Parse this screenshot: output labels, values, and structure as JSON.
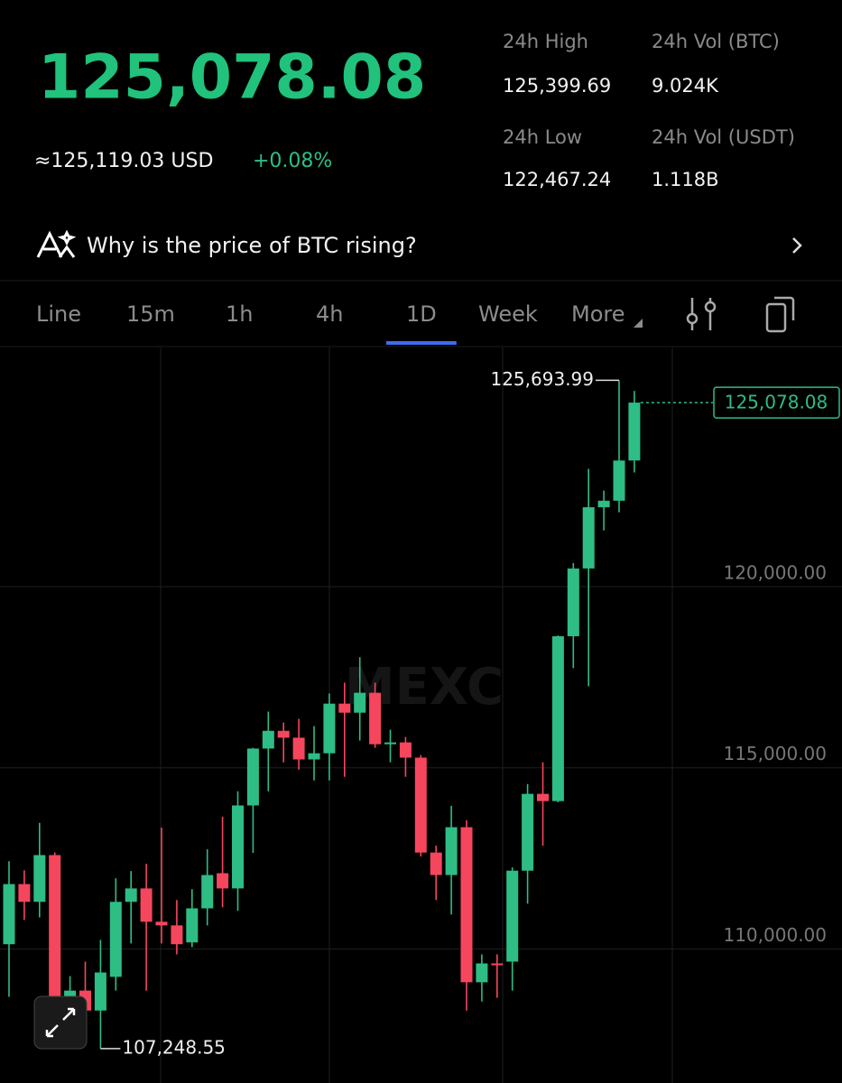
{
  "header": {
    "price": "125,078.08",
    "usd_price": "≈125,119.03 USD",
    "change": "+0.08%",
    "stats": [
      {
        "label": "24h High",
        "value": "125,399.69"
      },
      {
        "label": "24h Vol (BTC)",
        "value": "9.024K"
      },
      {
        "label": "24h Low",
        "value": "122,467.24"
      },
      {
        "label": "24h Vol  (USDT)",
        "value": "1.118B"
      }
    ]
  },
  "banner": {
    "text": "Why is the price of BTC rising?"
  },
  "tabs": {
    "items": [
      "Line",
      "15m",
      "1h",
      "4h",
      "1D",
      "Week",
      "More"
    ],
    "active": "1D"
  },
  "chart_data": {
    "type": "candlestick",
    "watermark": "MEXC",
    "up_color": "#2ebd85",
    "down_color": "#f6465d",
    "open": [
      110130,
      111790,
      111300,
      112590,
      108550,
      108850,
      108300,
      109230,
      111300,
      111670,
      110750,
      110650,
      110180,
      111120,
      112090,
      111670,
      113960,
      115530,
      116020,
      115830,
      115230,
      115400,
      116770,
      116520,
      117070,
      115650,
      115700,
      115280,
      112660,
      112040,
      113360,
      109080,
      109600,
      109650,
      112160,
      114280,
      114080,
      118630,
      120500,
      122190,
      122370,
      123480
    ],
    "high": [
      112420,
      112170,
      113480,
      112660,
      109250,
      109650,
      110250,
      111950,
      112150,
      112350,
      113350,
      111350,
      111650,
      112750,
      113650,
      114350,
      115550,
      116550,
      116250,
      116350,
      116150,
      117050,
      117350,
      118050,
      117350,
      116050,
      115850,
      115350,
      112850,
      113950,
      113550,
      109850,
      109850,
      112250,
      114550,
      115150,
      118650,
      120650,
      123250,
      122650,
      125693.99,
      125400
    ],
    "low": [
      108680,
      110800,
      110870,
      108060,
      107650,
      108250,
      107248.55,
      108850,
      110150,
      108850,
      110150,
      109850,
      110050,
      110650,
      111150,
      111050,
      112650,
      114350,
      115150,
      114950,
      114650,
      114650,
      114750,
      115750,
      115550,
      115150,
      114750,
      112550,
      111350,
      110950,
      108300,
      108550,
      108650,
      108850,
      111250,
      112850,
      114050,
      117750,
      117250,
      121550,
      122050,
      123150
    ],
    "close": [
      111790,
      111300,
      112590,
      108680,
      108850,
      108300,
      109350,
      111300,
      111670,
      110750,
      110650,
      110130,
      111120,
      112040,
      111670,
      113960,
      115530,
      116020,
      115830,
      115230,
      115400,
      116770,
      116520,
      117070,
      115650,
      115700,
      115280,
      112660,
      112040,
      113360,
      109080,
      109600,
      109550,
      112160,
      114280,
      114080,
      118630,
      120500,
      122190,
      122370,
      123480,
      125078.08
    ],
    "ylim": [
      106300,
      126600
    ],
    "yticks": [
      {
        "value": 110000,
        "label": "110,000.00"
      },
      {
        "value": 115000,
        "label": "115,000.00"
      },
      {
        "value": 120000,
        "label": "120,000.00"
      }
    ],
    "grid": true,
    "high_label": {
      "value": 125693.99,
      "label": "125,693.99"
    },
    "low_label": {
      "value": 107248.55,
      "label": "107,248.55"
    },
    "current_price": {
      "value": 125078.08,
      "label": "125,078.08"
    }
  }
}
